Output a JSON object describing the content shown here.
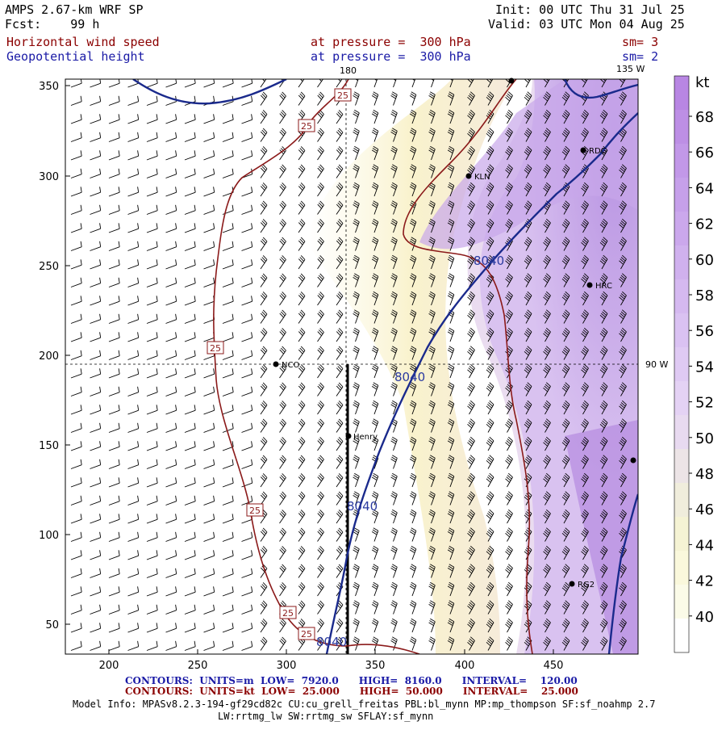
{
  "header": {
    "model": "AMPS 2.67-km WRF SP",
    "forecast": "Fcst:    99 h",
    "init": "Init: 00 UTC Thu 31 Jul 25",
    "valid": "Valid: 03 UTC Mon 04 Aug 25",
    "field1": "Horizontal wind speed",
    "field1_level": "at pressure =  300 hPa",
    "field1_sm": "sm= 3",
    "field2": "Geopotential height",
    "field2_level": "at pressure =  300 hPa",
    "field2_sm": "sm= 2"
  },
  "map": {
    "x_ticks": [
      "200",
      "250",
      "300",
      "350",
      "400",
      "450"
    ],
    "y_ticks": [
      "350",
      "300",
      "250",
      "200",
      "150",
      "100",
      "50"
    ],
    "meridian_top": "180",
    "meridian_top_right": "135 W",
    "parallel_right": "90 W",
    "stations": [
      "RDG",
      "KLN",
      "HRC",
      "NCO",
      "Henry",
      "RG2"
    ],
    "height_contour_label": "8040",
    "wind_contour_label": "25",
    "colorbar_unit": "kt",
    "colorbar_ticks": [
      "68",
      "66",
      "64",
      "62",
      "60",
      "58",
      "56",
      "54",
      "52",
      "50",
      "48",
      "46",
      "44",
      "42",
      "40"
    ],
    "colors": {
      "purple_high": "#b58ae0",
      "purple_mid": "#d6bcef",
      "pink": "#eedbe8",
      "yellow": "#f8f1c6",
      "height_contour": "#1a2a8c",
      "wind_contour": "#8b1a1a"
    }
  },
  "footer": {
    "line1": "CONTOURS:  UNITS=m  LOW=  7920.0      HIGH=  8160.0      INTERVAL=    120.00",
    "line2": "CONTOURS:  UNITS=kt  LOW=  25.000      HIGH=  50.000      INTERVAL=    25.000",
    "model_info_1": "Model Info: MPASv8.2.3-194-gf29cd82c CU:cu_grell_freitas PBL:bl_mynn MP:mp_thompson SF:sf_noahmp 2.7",
    "model_info_2": "LW:rrtmg_lw SW:rrtmg_sw SFLAY:sf_mynn"
  }
}
